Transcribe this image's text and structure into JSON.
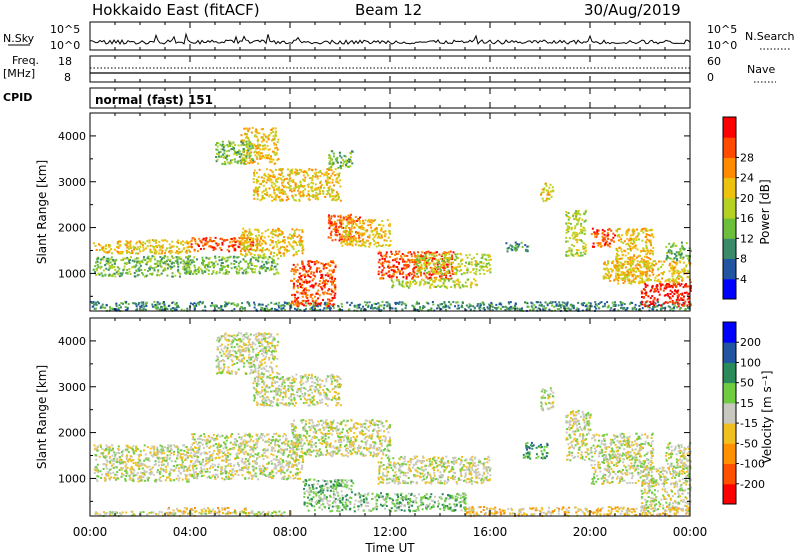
{
  "header": {
    "station": "Hokkaido East (fitACF)",
    "beam": "Beam 12",
    "date": "30/Aug/2019"
  },
  "strips": {
    "nsky_label": "N.Sky",
    "nsky_ticks": [
      "10^5",
      "10^0"
    ],
    "nsky_right_ticks": [
      "10^5",
      "10^0"
    ],
    "nsearch_label": "N.Search",
    "freq_label": "Freq.",
    "freq_unit": "[MHz]",
    "freq_ticks": [
      "18",
      "8"
    ],
    "nave_ticks": [
      "60",
      "0"
    ],
    "nave_label": "Nave",
    "cpid_label": "CPID",
    "cpid_value": "normal (fast) 151"
  },
  "chart_data": [
    {
      "type": "heatmap",
      "name": "power",
      "ylabel": "Slant Range [km]",
      "yticks": [
        1000,
        2000,
        3000,
        4000
      ],
      "ylim": [
        180,
        4500
      ],
      "xlim": [
        0,
        24
      ],
      "colorbar": {
        "label": "Power [dB]",
        "ticks": [
          "4",
          "8",
          "12",
          "16",
          "20",
          "24",
          "28"
        ],
        "colors": [
          "#0000ff",
          "#2255a0",
          "#3a8a6a",
          "#6cbf3a",
          "#b5d222",
          "#ecc20e",
          "#ff8c00",
          "#ff4a00",
          "#ff0000"
        ]
      },
      "regions": [
        {
          "t0": 0.0,
          "t1": 24.0,
          "r0": 200,
          "r1": 400,
          "c": 2
        },
        {
          "t0": 0.1,
          "t1": 4.0,
          "r0": 1450,
          "r1": 1750,
          "c": 5
        },
        {
          "t0": 0.1,
          "t1": 4.0,
          "r0": 950,
          "r1": 1400,
          "c": 3
        },
        {
          "t0": 4.0,
          "t1": 6.5,
          "r0": 1500,
          "r1": 1800,
          "c": 7
        },
        {
          "t0": 3.8,
          "t1": 7.5,
          "r0": 1000,
          "r1": 1400,
          "c": 3
        },
        {
          "t0": 6.0,
          "t1": 8.5,
          "r0": 1400,
          "r1": 2000,
          "c": 5
        },
        {
          "t0": 8.0,
          "t1": 9.8,
          "r0": 300,
          "r1": 1300,
          "c": 7
        },
        {
          "t0": 9.5,
          "t1": 10.8,
          "r0": 1700,
          "r1": 2300,
          "c": 7
        },
        {
          "t0": 10.0,
          "t1": 12.0,
          "r0": 1600,
          "r1": 2200,
          "c": 5
        },
        {
          "t0": 11.5,
          "t1": 14.5,
          "r0": 900,
          "r1": 1500,
          "c": 7
        },
        {
          "t0": 13.0,
          "t1": 16.0,
          "r0": 1000,
          "r1": 1450,
          "c": 4
        },
        {
          "t0": 12.0,
          "t1": 15.5,
          "r0": 700,
          "r1": 900,
          "c": 4
        },
        {
          "t0": 6.0,
          "t1": 7.5,
          "r0": 3400,
          "r1": 4200,
          "c": 5
        },
        {
          "t0": 5.0,
          "t1": 6.5,
          "r0": 3400,
          "r1": 3900,
          "c": 3
        },
        {
          "t0": 6.5,
          "t1": 10.0,
          "r0": 2600,
          "r1": 3300,
          "c": 5
        },
        {
          "t0": 9.5,
          "t1": 10.5,
          "r0": 3300,
          "r1": 3700,
          "c": 3
        },
        {
          "t0": 16.5,
          "t1": 17.5,
          "r0": 1500,
          "r1": 1700,
          "c": 2
        },
        {
          "t0": 18.0,
          "t1": 18.5,
          "r0": 2600,
          "r1": 3000,
          "c": 5
        },
        {
          "t0": 19.0,
          "t1": 19.8,
          "r0": 1400,
          "r1": 2400,
          "c": 4
        },
        {
          "t0": 20.0,
          "t1": 21.0,
          "r0": 1600,
          "r1": 2000,
          "c": 7
        },
        {
          "t0": 21.0,
          "t1": 22.5,
          "r0": 900,
          "r1": 2000,
          "c": 5
        },
        {
          "t0": 22.0,
          "t1": 24.0,
          "r0": 300,
          "r1": 800,
          "c": 8
        },
        {
          "t0": 20.5,
          "t1": 24.0,
          "r0": 800,
          "r1": 1300,
          "c": 5
        },
        {
          "t0": 23.0,
          "t1": 24.0,
          "r0": 1300,
          "r1": 1700,
          "c": 3
        }
      ]
    },
    {
      "type": "heatmap",
      "name": "velocity",
      "ylabel": "Slant Range [km]",
      "yticks": [
        1000,
        2000,
        3000,
        4000
      ],
      "ylim": [
        180,
        4500
      ],
      "xlim": [
        0,
        24
      ],
      "colorbar": {
        "label": "Velocity [m s⁻¹]",
        "ticks": [
          "-200",
          "-100",
          "-50",
          "-15",
          "15",
          "50",
          "100",
          "200"
        ],
        "colors": [
          "#ff0000",
          "#ff5000",
          "#ff9000",
          "#f0c020",
          "#c8c8c0",
          "#70cc40",
          "#2a8a5a",
          "#2255a0",
          "#0000ff"
        ]
      },
      "regions": [
        {
          "t0": 0.1,
          "t1": 4.0,
          "r0": 950,
          "r1": 1750,
          "c": 4
        },
        {
          "t0": 4.0,
          "t1": 8.5,
          "r0": 1000,
          "r1": 2000,
          "c": 4
        },
        {
          "t0": 8.0,
          "t1": 12.0,
          "r0": 1500,
          "r1": 2300,
          "c": 4
        },
        {
          "t0": 11.5,
          "t1": 16.0,
          "r0": 900,
          "r1": 1500,
          "c": 4
        },
        {
          "t0": 8.5,
          "t1": 10.5,
          "r0": 300,
          "r1": 1000,
          "c": 5
        },
        {
          "t0": 10.5,
          "t1": 15.0,
          "r0": 300,
          "r1": 700,
          "c": 5
        },
        {
          "t0": 3.0,
          "t1": 6.5,
          "r0": 250,
          "r1": 380,
          "c": 3
        },
        {
          "t0": 15.0,
          "t1": 24.0,
          "r0": 200,
          "r1": 400,
          "c": 3
        },
        {
          "t0": 0.0,
          "t1": 8.0,
          "r0": 200,
          "r1": 300,
          "c": 4
        },
        {
          "t0": 5.0,
          "t1": 7.5,
          "r0": 3300,
          "r1": 4200,
          "c": 4
        },
        {
          "t0": 6.5,
          "t1": 10.0,
          "r0": 2600,
          "r1": 3300,
          "c": 4
        },
        {
          "t0": 17.3,
          "t1": 18.3,
          "r0": 1450,
          "r1": 1800,
          "c": 6
        },
        {
          "t0": 18.0,
          "t1": 18.5,
          "r0": 2500,
          "r1": 3000,
          "c": 4
        },
        {
          "t0": 19.0,
          "t1": 20.0,
          "r0": 1400,
          "r1": 2500,
          "c": 4
        },
        {
          "t0": 20.0,
          "t1": 22.5,
          "r0": 900,
          "r1": 2000,
          "c": 4
        },
        {
          "t0": 22.0,
          "t1": 24.0,
          "r0": 300,
          "r1": 1300,
          "c": 4
        },
        {
          "t0": 23.0,
          "t1": 24.0,
          "r0": 1300,
          "r1": 1800,
          "c": 4
        }
      ]
    }
  ],
  "xaxis": {
    "ticks": [
      "00:00",
      "04:00",
      "08:00",
      "12:00",
      "16:00",
      "20:00",
      "00:00"
    ],
    "label": "Time UT"
  }
}
